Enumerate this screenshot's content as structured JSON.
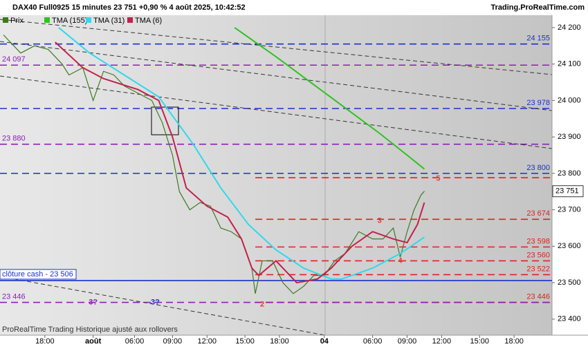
{
  "chart_data": {
    "type": "line",
    "title": "DAX40 Full0925 15 minutes 23 751 +0,90 % 4 août 2025, 10:42:52",
    "source": "Trading.ProRealTime.com",
    "footer": "ProRealTime Trading Historique ajusté aux rollovers",
    "xlim": [
      0,
      160
    ],
    "xticks": [
      {
        "value": 13,
        "label": "18:00"
      },
      {
        "value": 27,
        "label": "août"
      },
      {
        "value": 39,
        "label": "06:00"
      },
      {
        "value": 50,
        "label": "09:00"
      },
      {
        "value": 60,
        "label": "12:00"
      },
      {
        "value": 71,
        "label": "15:00"
      },
      {
        "value": 81,
        "label": "18:00"
      },
      {
        "value": 94,
        "label": "04"
      },
      {
        "value": 108,
        "label": "06:00"
      },
      {
        "value": 118,
        "label": "09:00"
      },
      {
        "value": 128,
        "label": "12:00"
      },
      {
        "value": 139,
        "label": "15:00"
      },
      {
        "value": 149,
        "label": "18:00"
      }
    ],
    "ylim": [
      23356,
      24234
    ],
    "yticks": [
      {
        "value": 23400,
        "label": "23 400"
      },
      {
        "value": 23500,
        "label": "23 500"
      },
      {
        "value": 23600,
        "label": "23 600"
      },
      {
        "value": 23700,
        "label": "23 700"
      },
      {
        "value": 23800,
        "label": "23 800"
      },
      {
        "value": 23900,
        "label": "23 900"
      },
      {
        "value": 24000,
        "label": "24 000"
      },
      {
        "value": 24100,
        "label": "24 100"
      },
      {
        "value": 24200,
        "label": "24 200"
      }
    ],
    "series": [
      {
        "name": "Prix",
        "color": "#3d7a1e",
        "x": [
          1,
          6,
          10,
          14,
          18,
          20,
          24,
          27,
          30,
          33,
          36,
          40,
          44,
          47,
          50,
          52,
          55,
          58,
          61,
          64,
          67,
          70,
          73,
          74,
          76,
          79,
          82,
          85,
          88,
          91,
          94,
          97,
          100,
          104,
          108,
          111,
          114,
          116,
          118,
          120,
          122,
          123
        ],
        "values": [
          24180,
          24130,
          24150,
          24140,
          24100,
          24070,
          24090,
          24000,
          24080,
          24070,
          24040,
          24020,
          24000,
          23940,
          23850,
          23750,
          23700,
          23720,
          23710,
          23650,
          23640,
          23620,
          23540,
          23470,
          23560,
          23560,
          23500,
          23470,
          23490,
          23520,
          23520,
          23560,
          23580,
          23640,
          23620,
          23620,
          23650,
          23570,
          23640,
          23700,
          23740,
          23751
        ]
      },
      {
        "name": "TMA (155)",
        "color": "#2fc21f",
        "x": [
          68,
          80,
          90,
          100,
          110,
          118,
          123
        ],
        "values": [
          24200,
          24120,
          24050,
          23980,
          23910,
          23850,
          23812
        ]
      },
      {
        "name": "TMA (31)",
        "color": "#30d8ee",
        "x": [
          17,
          26,
          36,
          46,
          56,
          64,
          72,
          80,
          88,
          96,
          99,
          108,
          116,
          123
        ],
        "values": [
          24200,
          24130,
          24070,
          24010,
          23880,
          23760,
          23660,
          23590,
          23540,
          23510,
          23510,
          23540,
          23580,
          23625
        ]
      },
      {
        "name": "TMA (6)",
        "color": "#c2204a",
        "x": [
          16,
          24,
          30,
          40,
          46,
          50,
          54,
          60,
          66,
          70,
          73,
          75,
          80,
          86,
          92,
          96,
          102,
          108,
          114,
          118,
          121,
          123
        ],
        "values": [
          24160,
          24090,
          24060,
          24030,
          24000,
          23900,
          23760,
          23710,
          23680,
          23620,
          23540,
          23520,
          23560,
          23500,
          23510,
          23540,
          23600,
          23640,
          23620,
          23610,
          23660,
          23720
        ]
      }
    ],
    "levels": [
      {
        "value": 24155,
        "label": "24 155",
        "color": "#1a2fd0",
        "side": "right",
        "from": 0
      },
      {
        "value": 24097,
        "label": "24 097",
        "color": "#8a1fb5",
        "side": "left",
        "from": 0
      },
      {
        "value": 23978,
        "label": "23 978",
        "color": "#1a2fd0",
        "side": "right",
        "from": 0
      },
      {
        "value": 23880,
        "label": "23 880",
        "color": "#8a1fb5",
        "side": "left",
        "from": 0
      },
      {
        "value": 23800,
        "label": "23 800",
        "color": "#1a2fd0",
        "side": "right",
        "from": 0
      },
      {
        "value": 23788,
        "color": "#e02020",
        "side": "right",
        "from": 74
      },
      {
        "value": 23674,
        "label": "23 674",
        "color": "#e02020",
        "side": "right",
        "from": 74
      },
      {
        "value": 23598,
        "label": "23 598",
        "color": "#e02020",
        "side": "right",
        "from": 74
      },
      {
        "value": 23560,
        "label": "23 560",
        "color": "#e02020",
        "side": "right",
        "from": 74
      },
      {
        "value": 23522,
        "label": "23 522",
        "color": "#e02020",
        "side": "right",
        "from": 74
      },
      {
        "value": 23446,
        "label": "23 446",
        "color": "#e02020",
        "side": "right",
        "from": 74
      },
      {
        "value": 23446,
        "label": "23 446",
        "color": "#8a1fb5",
        "side": "left",
        "from": 0
      }
    ],
    "close_line": {
      "value": 23506,
      "label": "clôture cash -  23 506",
      "color": "#1a2fd0"
    },
    "last_price": {
      "value": 23751,
      "label": "23 751"
    },
    "annotations": [
      {
        "text": "3?",
        "x": 27,
        "y": 23446,
        "color": "#8a1fb5"
      },
      {
        "text": "3?",
        "x": 45,
        "y": 23446,
        "color": "#1a2fd0"
      },
      {
        "text": "2",
        "x": 76,
        "y": 23440,
        "color": "#e03a3a"
      },
      {
        "text": "3",
        "x": 110,
        "y": 23670,
        "color": "#e03a3a"
      },
      {
        "text": "4",
        "x": 116,
        "y": 23560,
        "color": "#e03a3a"
      },
      {
        "text": "5",
        "x": 127,
        "y": 23785,
        "color": "#e03a3a"
      }
    ]
  }
}
